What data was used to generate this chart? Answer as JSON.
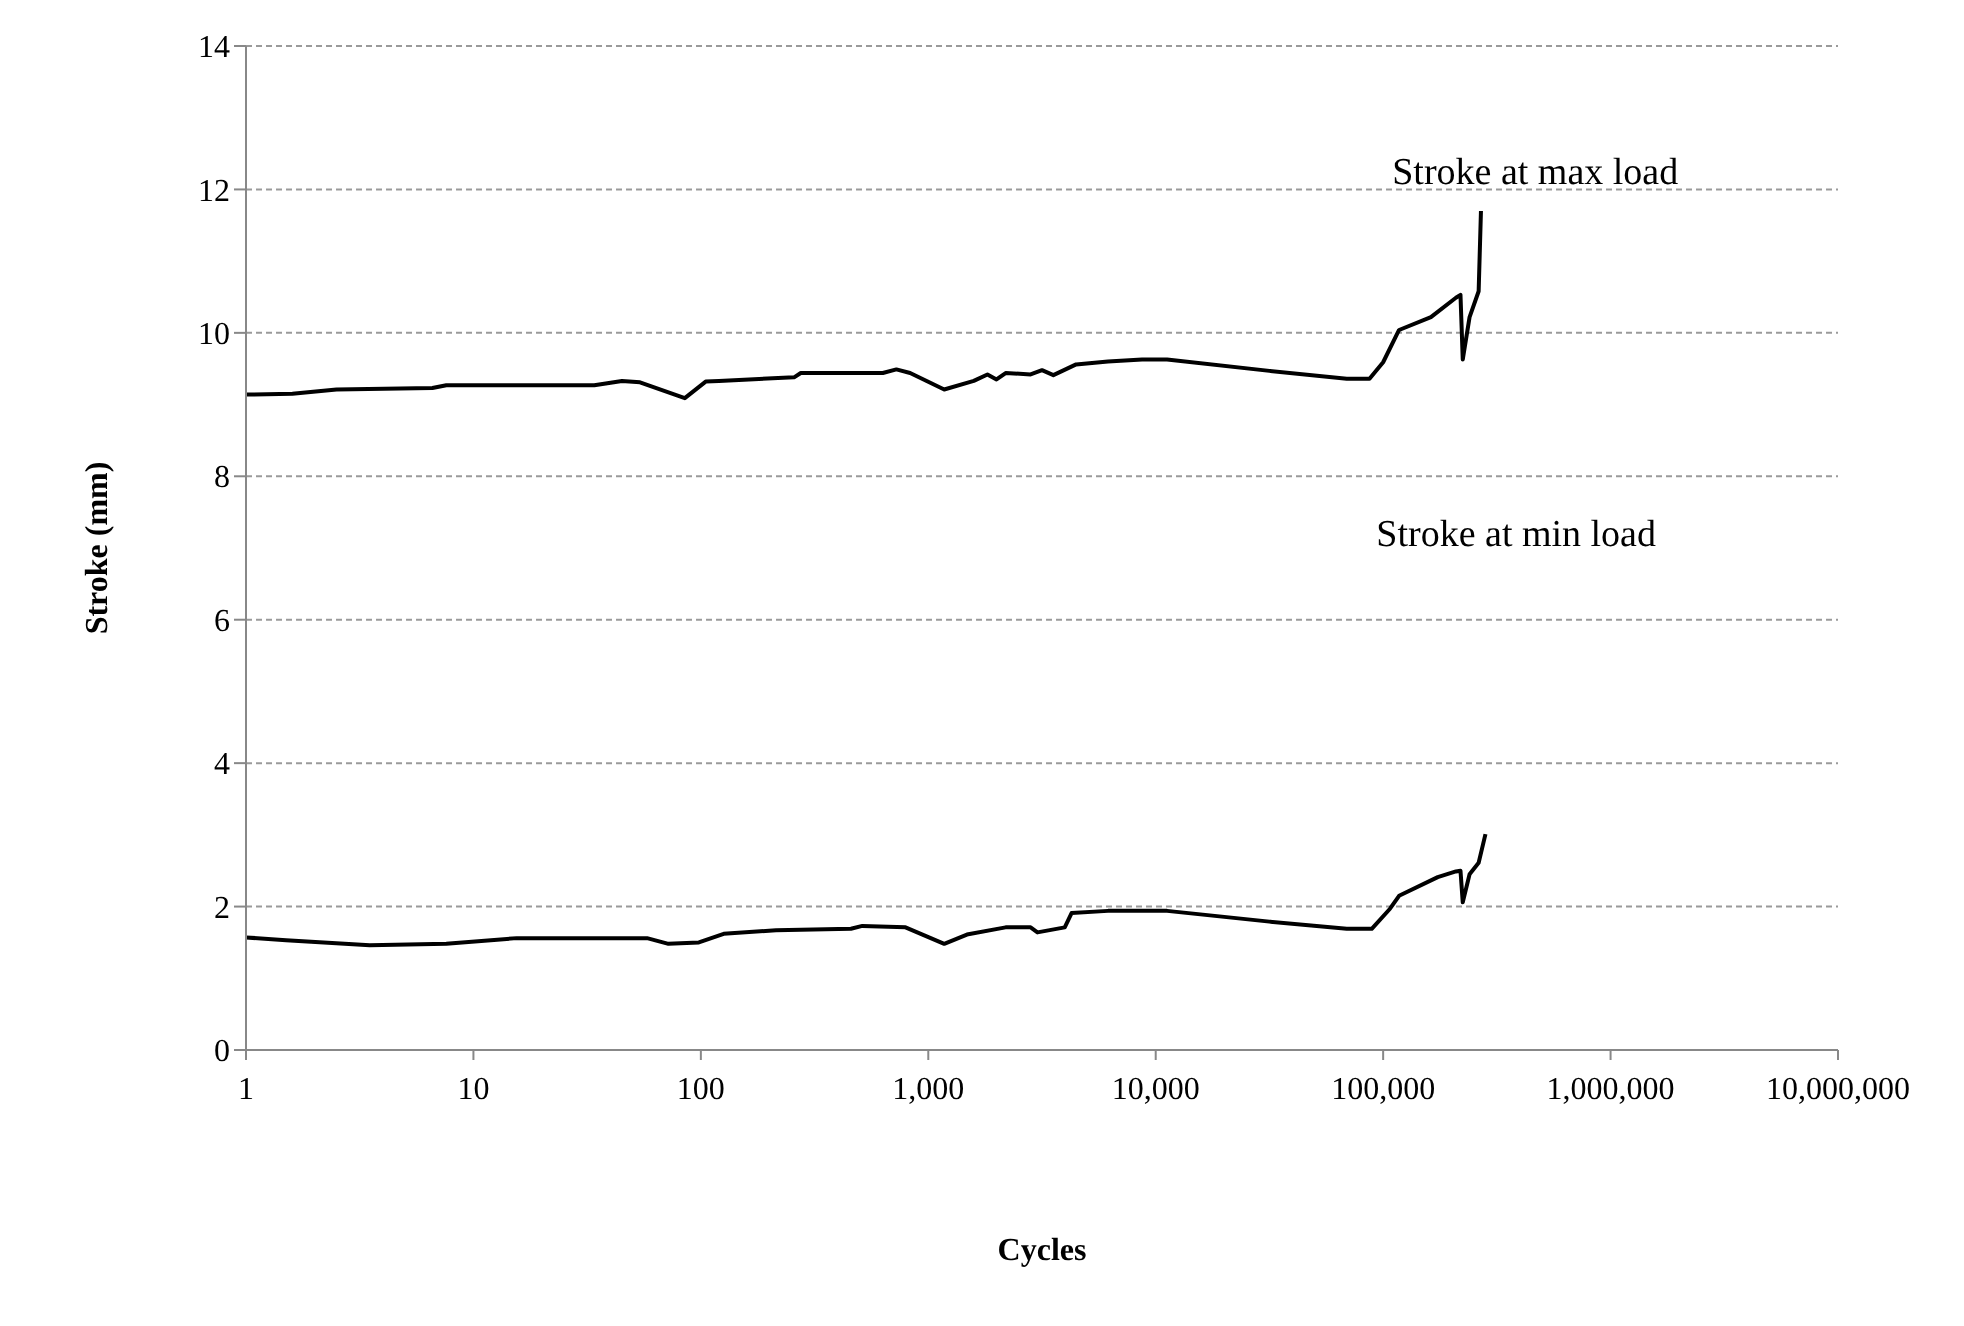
{
  "chart_data": {
    "type": "line",
    "xlabel": "Cycles",
    "ylabel": "Stroke (mm)",
    "annotations": [
      "Stroke at max load",
      "Stroke at min load"
    ],
    "log": "x",
    "grid": "y",
    "marker": "none",
    "line_style": "solid",
    "xlim": [
      1,
      10000000
    ],
    "xticks": [
      1,
      10,
      100,
      {
        "value": 1000,
        "label": "1,000"
      },
      {
        "value": 10000,
        "label": "10,000"
      },
      {
        "value": 100000,
        "label": "100,000"
      },
      {
        "value": 1000000,
        "label": "1,000,000"
      },
      {
        "value": 10000000,
        "label": "10,000,000"
      }
    ],
    "ylim": [
      0,
      14
    ],
    "yticks": [
      0,
      2,
      4,
      6,
      8,
      10,
      12,
      14
    ],
    "series": [
      {
        "color": "#000000",
        "x": [
          1,
          1.6,
          2.5,
          6.6,
          7.6,
          34,
          45,
          54,
          85,
          105,
          120,
          257,
          275,
          631,
          724,
          832,
          1175,
          1585,
          1820,
          1995,
          2188,
          2818,
          3162,
          3548,
          4467,
          6166,
          8710,
          11220,
          31620,
          69180,
          87100,
          100000,
          117500,
          162200,
          208900,
          218800,
          223900,
          239900,
          263000,
          269200
        ],
        "values": [
          9.14,
          9.15,
          9.21,
          9.23,
          9.27,
          9.27,
          9.33,
          9.31,
          9.09,
          9.32,
          9.33,
          9.38,
          9.44,
          9.44,
          9.49,
          9.44,
          9.21,
          9.33,
          9.42,
          9.35,
          9.44,
          9.42,
          9.48,
          9.41,
          9.56,
          9.6,
          9.63,
          9.63,
          9.47,
          9.36,
          9.36,
          9.59,
          10.04,
          10.22,
          10.49,
          10.53,
          9.63,
          10.22,
          10.58,
          11.7
        ]
      },
      {
        "color": "#000000",
        "x": [
          1,
          1.5,
          3.5,
          7.6,
          15.5,
          58,
          72,
          98,
          126,
          214,
          457,
          513,
          794,
          1175,
          1479,
          2188,
          2818,
          3020,
          3981,
          4266,
          6166,
          11220,
          31620,
          69180,
          89100,
          107200,
          117500,
          173800,
          208900,
          218800,
          223900,
          239900,
          263000,
          281800
        ],
        "values": [
          1.57,
          1.53,
          1.46,
          1.48,
          1.56,
          1.56,
          1.48,
          1.5,
          1.62,
          1.67,
          1.69,
          1.73,
          1.71,
          1.48,
          1.61,
          1.71,
          1.71,
          1.64,
          1.71,
          1.91,
          1.94,
          1.94,
          1.79,
          1.69,
          1.69,
          1.97,
          2.15,
          2.41,
          2.49,
          2.5,
          2.06,
          2.45,
          2.61,
          3.01
        ]
      }
    ]
  }
}
